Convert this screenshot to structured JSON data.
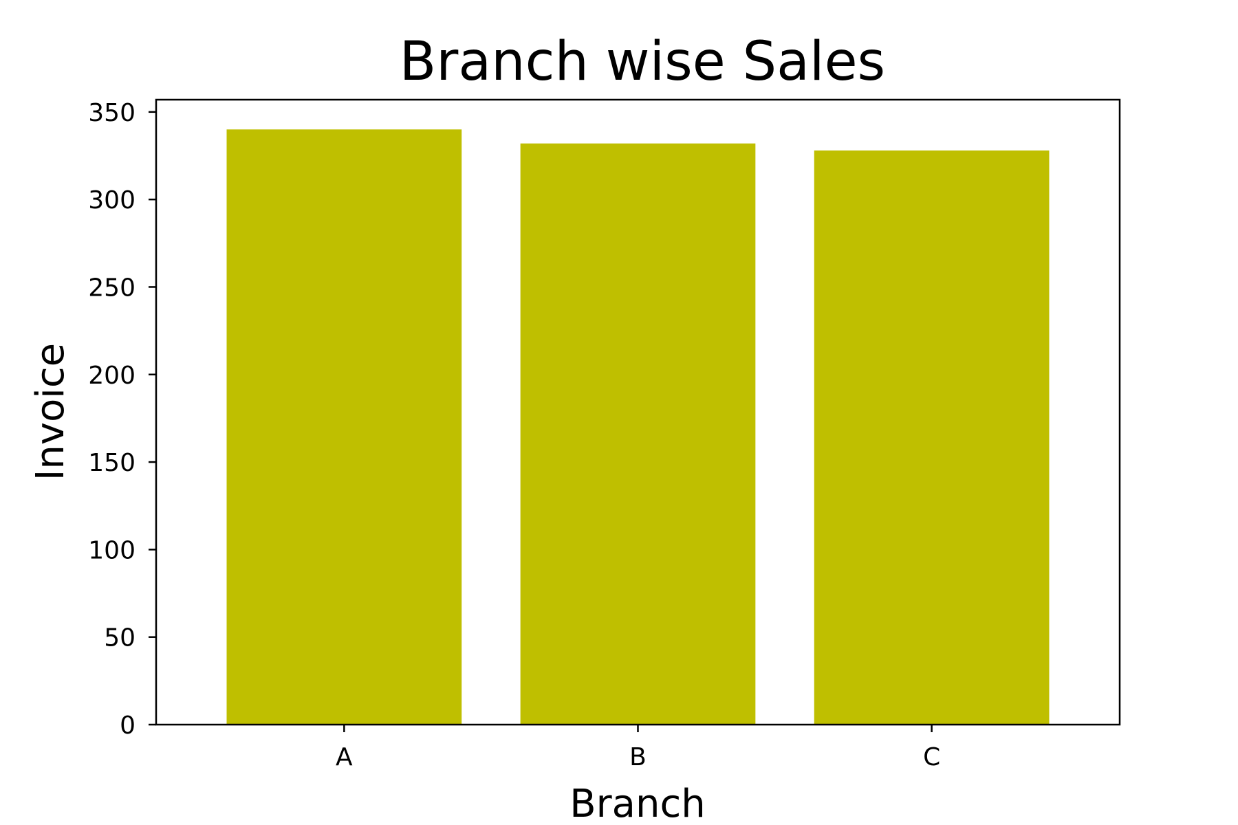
{
  "chart_data": {
    "type": "bar",
    "title": "Branch wise Sales",
    "xlabel": "Branch",
    "ylabel": "Invoice",
    "categories": [
      "A",
      "B",
      "C"
    ],
    "values": [
      340,
      332,
      328
    ],
    "ylim": [
      0,
      357
    ],
    "yticks": [
      0,
      50,
      100,
      150,
      200,
      250,
      300,
      350
    ],
    "bar_color": "#bfbf00",
    "grid": false,
    "legend": "none"
  }
}
